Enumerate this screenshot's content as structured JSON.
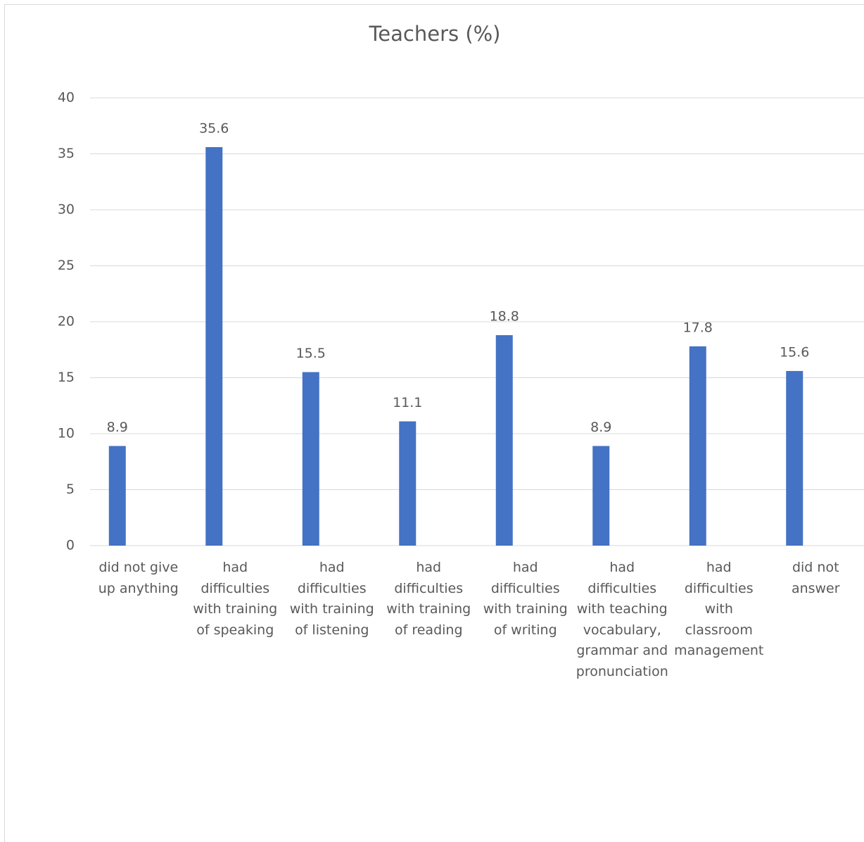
{
  "chart_data": {
    "type": "bar",
    "title": "Teachers (%)",
    "categories": [
      "did not give up anything",
      "had difficulties with training of speaking",
      "had difficulties with training of listening",
      "had difficulties with training of reading",
      "had difficulties with training of writing",
      "had difficulties with teaching vocabulary, grammar and pronunciation",
      "had difficulties with classroom management",
      "did not answer"
    ],
    "values": [
      8.9,
      35.6,
      15.5,
      11.1,
      18.8,
      8.9,
      17.8,
      15.6
    ],
    "color": "#4472c4",
    "ylim": [
      0,
      40
    ],
    "yticks": [
      0,
      5,
      10,
      15,
      20,
      25,
      30,
      35,
      40
    ],
    "grid": true
  }
}
